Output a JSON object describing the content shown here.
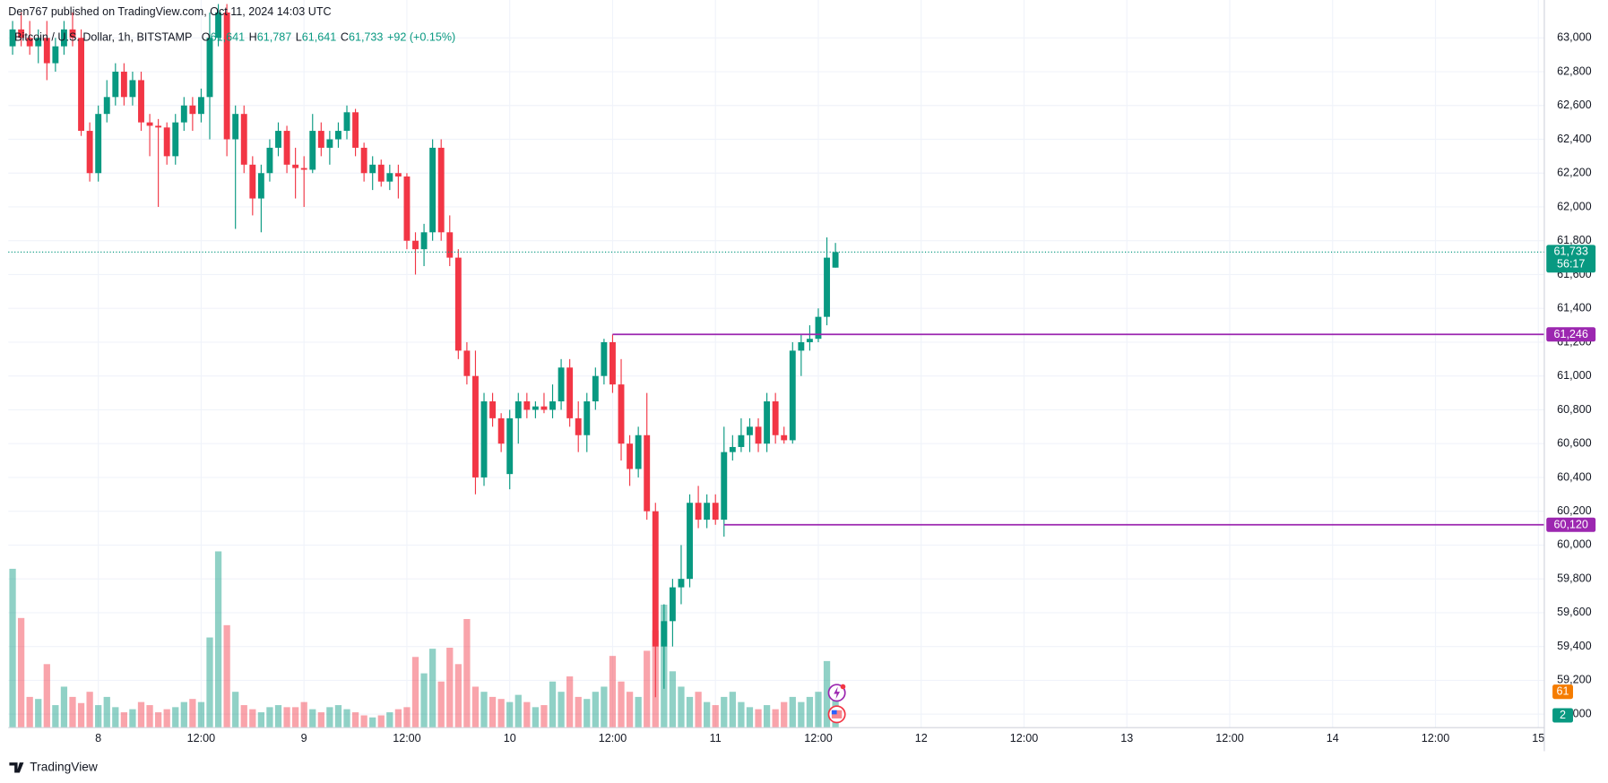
{
  "header": {
    "published": "Den767 published on TradingView.com, Oct 11, 2024 14:03 UTC"
  },
  "footer": {
    "brand": "TradingView"
  },
  "chart_data": {
    "type": "candlestick",
    "title": "Bitcoin / U.S. Dollar, 1h, BITSTAMP",
    "legend": {
      "ohlc": [
        {
          "key": "O",
          "value": "61,641"
        },
        {
          "key": "H",
          "value": "61,787"
        },
        {
          "key": "L",
          "value": "61,641"
        },
        {
          "key": "C",
          "value": "61,733"
        }
      ],
      "change": "+92 (+0.15%)"
    },
    "up_color": "#089981",
    "down_color": "#f23645",
    "ohlc": [
      [
        62950,
        63100,
        62900,
        63050
      ],
      [
        63050,
        63150,
        62950,
        63000
      ],
      [
        63000,
        63100,
        62900,
        62950
      ],
      [
        62950,
        63050,
        62850,
        63000
      ],
      [
        63000,
        63100,
        62750,
        62850
      ],
      [
        62850,
        63000,
        62800,
        62950
      ],
      [
        62950,
        63100,
        62900,
        63050
      ],
      [
        63050,
        63150,
        62950,
        63000
      ],
      [
        63000,
        63050,
        62420,
        62450
      ],
      [
        62450,
        62500,
        62150,
        62200
      ],
      [
        62200,
        62600,
        62150,
        62550
      ],
      [
        62550,
        62750,
        62500,
        62650
      ],
      [
        62650,
        62850,
        62600,
        62800
      ],
      [
        62800,
        62850,
        62600,
        62650
      ],
      [
        62650,
        62800,
        62600,
        62750
      ],
      [
        62750,
        62800,
        62450,
        62500
      ],
      [
        62500,
        62550,
        62300,
        62480
      ],
      [
        62480,
        62520,
        62000,
        62470
      ],
      [
        62470,
        62500,
        62250,
        62300
      ],
      [
        62300,
        62550,
        62250,
        62500
      ],
      [
        62500,
        62650,
        62450,
        62600
      ],
      [
        62600,
        62650,
        62450,
        62550
      ],
      [
        62550,
        62700,
        62500,
        62650
      ],
      [
        62650,
        63150,
        62400,
        63000
      ],
      [
        63000,
        63200,
        62950,
        63150
      ],
      [
        63150,
        63200,
        62300,
        62400
      ],
      [
        62400,
        62600,
        61870,
        62550
      ],
      [
        62550,
        62600,
        62200,
        62250
      ],
      [
        62250,
        62300,
        61950,
        62050
      ],
      [
        62050,
        62250,
        61850,
        62200
      ],
      [
        62200,
        62400,
        62150,
        62350
      ],
      [
        62350,
        62500,
        62300,
        62450
      ],
      [
        62450,
        62480,
        62200,
        62250
      ],
      [
        62250,
        62350,
        62050,
        62230
      ],
      [
        62230,
        62300,
        62000,
        62220
      ],
      [
        62220,
        62550,
        62200,
        62450
      ],
      [
        62450,
        62500,
        62300,
        62350
      ],
      [
        62350,
        62450,
        62250,
        62400
      ],
      [
        62400,
        62500,
        62350,
        62450
      ],
      [
        62450,
        62600,
        62400,
        62560
      ],
      [
        62560,
        62580,
        62300,
        62350
      ],
      [
        62350,
        62380,
        62150,
        62200
      ],
      [
        62200,
        62300,
        62100,
        62250
      ],
      [
        62250,
        62280,
        62120,
        62150
      ],
      [
        62150,
        62250,
        62100,
        62200
      ],
      [
        62200,
        62250,
        62050,
        62180
      ],
      [
        62180,
        62200,
        61750,
        61800
      ],
      [
        61800,
        61850,
        61600,
        61750
      ],
      [
        61750,
        61900,
        61650,
        61850
      ],
      [
        61850,
        62400,
        61800,
        62350
      ],
      [
        62350,
        62400,
        61800,
        61850
      ],
      [
        61850,
        61950,
        61650,
        61700
      ],
      [
        61700,
        61750,
        61100,
        61150
      ],
      [
        61150,
        61200,
        60950,
        61000
      ],
      [
        61000,
        61150,
        60300,
        60400
      ],
      [
        60400,
        60900,
        60350,
        60850
      ],
      [
        60850,
        60900,
        60700,
        60750
      ],
      [
        60750,
        60780,
        60550,
        60600
      ],
      [
        60420,
        60800,
        60330,
        60750
      ],
      [
        60750,
        60900,
        60600,
        60850
      ],
      [
        60850,
        60900,
        60750,
        60800
      ],
      [
        60800,
        60850,
        60750,
        60820
      ],
      [
        60820,
        60900,
        60780,
        60800
      ],
      [
        60800,
        60950,
        60750,
        60850
      ],
      [
        60850,
        61100,
        60800,
        61050
      ],
      [
        61050,
        61100,
        60700,
        60750
      ],
      [
        60750,
        60850,
        60550,
        60650
      ],
      [
        60650,
        60900,
        60550,
        60850
      ],
      [
        60850,
        61050,
        60800,
        61000
      ],
      [
        61000,
        61220,
        60950,
        61200
      ],
      [
        61200,
        61246,
        60900,
        60950
      ],
      [
        60950,
        61100,
        60500,
        60600
      ],
      [
        60600,
        60650,
        60350,
        60450
      ],
      [
        60450,
        60700,
        60400,
        60650
      ],
      [
        60650,
        60900,
        60150,
        60200
      ],
      [
        60200,
        60250,
        59100,
        59400
      ],
      [
        59400,
        59650,
        59150,
        59550
      ],
      [
        59550,
        59800,
        59400,
        59750
      ],
      [
        59750,
        60000,
        59650,
        59800
      ],
      [
        59800,
        60300,
        59750,
        60250
      ],
      [
        60250,
        60350,
        60100,
        60150
      ],
      [
        60150,
        60300,
        60100,
        60250
      ],
      [
        60250,
        60300,
        60120,
        60150
      ],
      [
        60150,
        60700,
        60050,
        60550
      ],
      [
        60550,
        60650,
        60500,
        60580
      ],
      [
        60580,
        60750,
        60550,
        60650
      ],
      [
        60650,
        60750,
        60550,
        60700
      ],
      [
        60700,
        60750,
        60550,
        60600
      ],
      [
        60600,
        60900,
        60550,
        60850
      ],
      [
        60850,
        60900,
        60600,
        60650
      ],
      [
        60650,
        60700,
        60600,
        60620
      ],
      [
        60620,
        61200,
        60600,
        61150
      ],
      [
        61150,
        61250,
        61000,
        61200
      ],
      [
        61200,
        61300,
        61150,
        61220
      ],
      [
        61220,
        61400,
        61200,
        61350
      ],
      [
        61350,
        61820,
        61300,
        61700
      ],
      [
        61641,
        61787,
        61641,
        61733
      ]
    ],
    "volume": [
      155,
      107,
      30,
      28,
      62,
      22,
      40,
      30,
      24,
      35,
      22,
      30,
      20,
      15,
      18,
      25,
      22,
      15,
      18,
      20,
      25,
      28,
      25,
      88,
      172,
      100,
      35,
      22,
      18,
      15,
      20,
      22,
      20,
      20,
      25,
      18,
      15,
      20,
      22,
      18,
      15,
      12,
      10,
      12,
      15,
      18,
      20,
      69,
      53,
      77,
      45,
      78,
      62,
      106,
      40,
      35,
      30,
      28,
      25,
      32,
      25,
      20,
      22,
      45,
      35,
      50,
      30,
      28,
      35,
      40,
      70,
      45,
      35,
      30,
      75,
      95,
      120,
      55,
      40,
      30,
      35,
      25,
      22,
      30,
      35,
      25,
      20,
      18,
      22,
      18,
      25,
      30,
      25,
      30,
      35,
      65,
      40
    ],
    "volume_lim": [
      0,
      710
    ],
    "xlim": [
      -0.5,
      178.7
    ],
    "xticks": [
      {
        "value": 10,
        "label": "8"
      },
      {
        "value": 22,
        "label": "12:00"
      },
      {
        "value": 34,
        "label": "9"
      },
      {
        "value": 46,
        "label": "12:00"
      },
      {
        "value": 58,
        "label": "10"
      },
      {
        "value": 70,
        "label": "12:00"
      },
      {
        "value": 82,
        "label": "11"
      },
      {
        "value": 94,
        "label": "12:00"
      },
      {
        "value": 106,
        "label": "12"
      },
      {
        "value": 118,
        "label": "12:00"
      },
      {
        "value": 130,
        "label": "13"
      },
      {
        "value": 142,
        "label": "12:00"
      },
      {
        "value": 154,
        "label": "14"
      },
      {
        "value": 166,
        "label": "12:00"
      },
      {
        "value": 178,
        "label": "15"
      }
    ],
    "ylim": [
      58920,
      63224
    ],
    "yticks": [
      {
        "value": 59000,
        "label": "59,000"
      },
      {
        "value": 59200,
        "label": "59,200"
      },
      {
        "value": 59400,
        "label": "59,400"
      },
      {
        "value": 59600,
        "label": "59,600"
      },
      {
        "value": 59800,
        "label": "59,800"
      },
      {
        "value": 60000,
        "label": "60,000"
      },
      {
        "value": 60200,
        "label": "60,200"
      },
      {
        "value": 60400,
        "label": "60,400"
      },
      {
        "value": 60600,
        "label": "60,600"
      },
      {
        "value": 60800,
        "label": "60,800"
      },
      {
        "value": 61000,
        "label": "61,000"
      },
      {
        "value": 61200,
        "label": "61,200"
      },
      {
        "value": 61400,
        "label": "61,400"
      },
      {
        "value": 61600,
        "label": "61,600"
      },
      {
        "value": 61800,
        "label": "61,800"
      },
      {
        "value": 62000,
        "label": "62,000"
      },
      {
        "value": 62200,
        "label": "62,200"
      },
      {
        "value": 62400,
        "label": "62,400"
      },
      {
        "value": 62600,
        "label": "62,600"
      },
      {
        "value": 62800,
        "label": "62,800"
      },
      {
        "value": 63000,
        "label": "63,000"
      }
    ],
    "grid": true,
    "last_price": {
      "label": "61,733",
      "countdown": "56:17",
      "color": "#089981"
    },
    "levels": [
      {
        "value": 61246,
        "label": "61,246",
        "from": 70,
        "color": "#9c27b0"
      },
      {
        "value": 60120,
        "label": "60,120",
        "from": 83,
        "color": "#9c27b0"
      }
    ],
    "badges": [
      {
        "label": "61",
        "color": "#f57c00"
      },
      {
        "label": "2",
        "color": "#089981"
      }
    ]
  }
}
